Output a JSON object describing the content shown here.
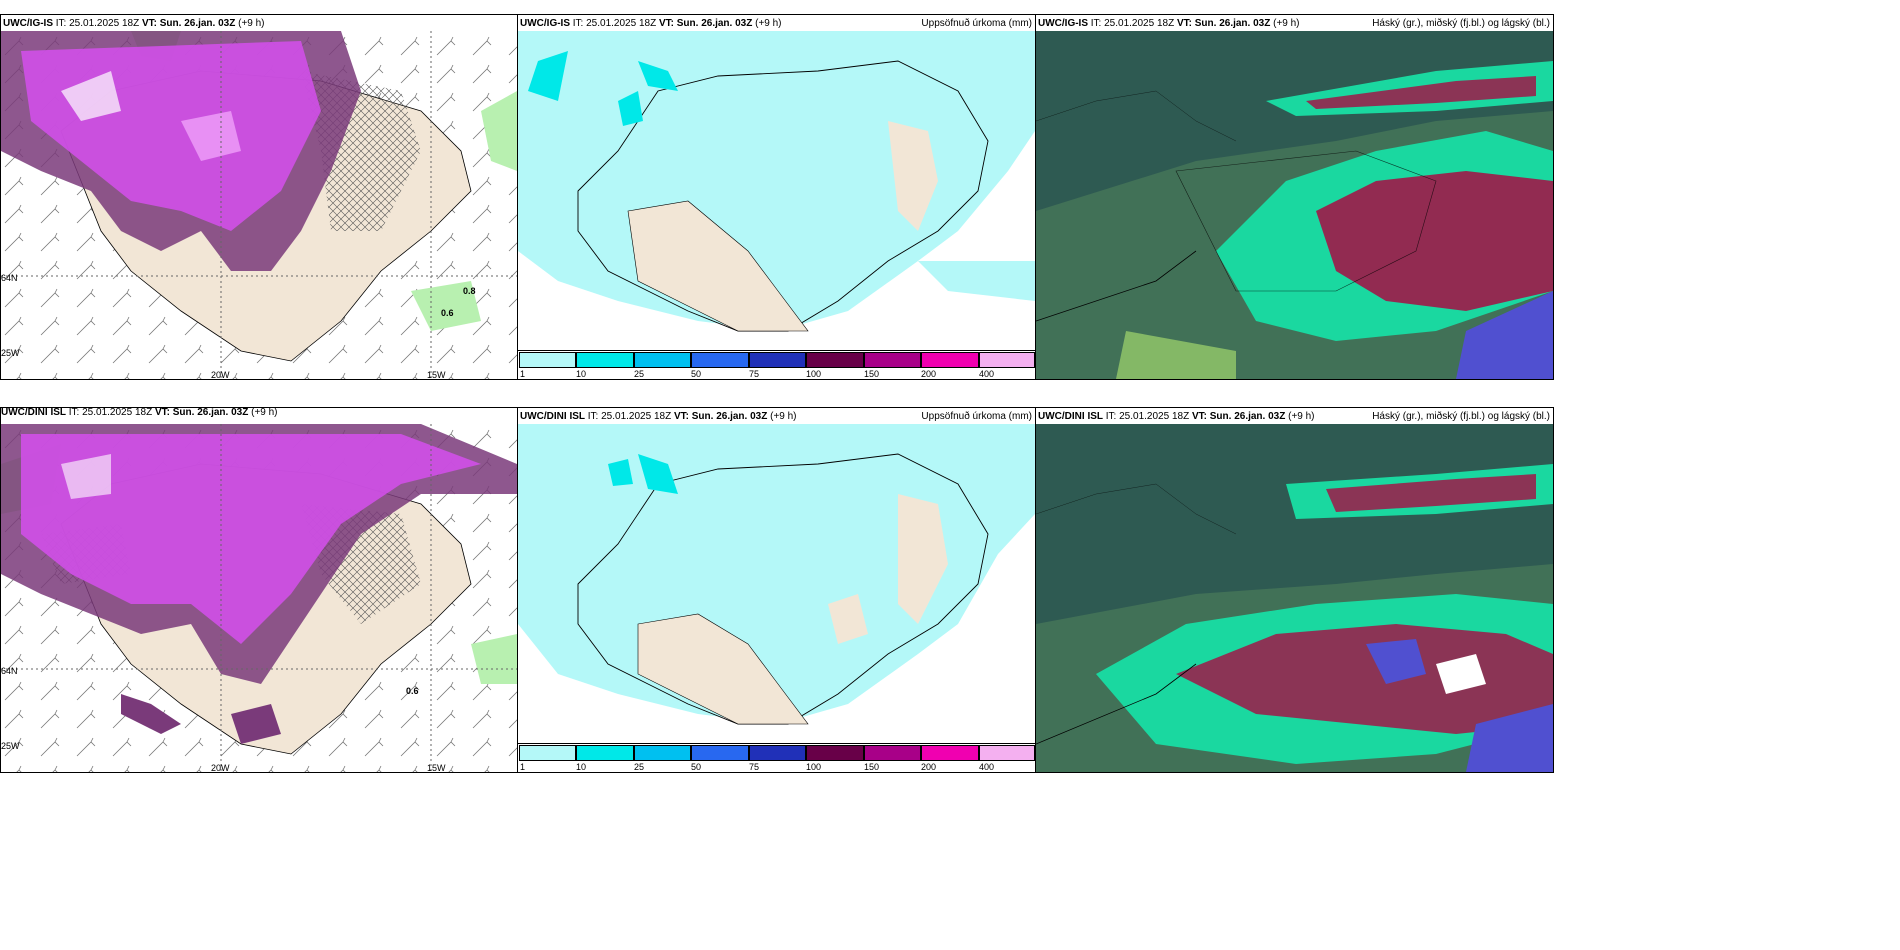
{
  "rows": [
    {
      "model": "UWC/IG-IS",
      "it_label": "IT: 25.01.2025 18Z",
      "vt_label": "VT: Sun. 26.jan. 03Z",
      "offset": "(+9 h)",
      "left_panel": {
        "labels": [
          "0.8",
          "0.6"
        ],
        "lon_labels": [
          "20W",
          "15W"
        ],
        "lat_labels": [
          "64N",
          "25W"
        ]
      },
      "mid_panel": {
        "right_title": "Uppsöfnuð úrkoma (mm)"
      },
      "right_panel": {
        "right_title": "Háský (gr.), miðský (fj.bl.) og lágský (bl.)"
      }
    },
    {
      "model": "UWC/DINI ISL",
      "it_label": "IT: 25.01.2025 18Z",
      "vt_label": "VT: Sun. 26.jan. 03Z",
      "offset": "(+9 h)",
      "left_panel": {
        "labels": [
          "0.6"
        ],
        "lon_labels": [
          "20W",
          "15W"
        ],
        "lat_labels": [
          "64N",
          "25W"
        ]
      },
      "mid_panel": {
        "right_title": "Uppsöfnuð úrkoma (mm)"
      },
      "right_panel": {
        "right_title": "Háský (gr.), miðský (fj.bl.) og lágský (bl.)"
      }
    }
  ],
  "legend": {
    "ticks": [
      "1",
      "10",
      "25",
      "50",
      "75",
      "100",
      "150",
      "200",
      "400"
    ],
    "colors": [
      "#b4f8f8",
      "#00e8e8",
      "#00c0f0",
      "#2868f0",
      "#2030b8",
      "#680048",
      "#a80088",
      "#f000b0",
      "#f4b0f0"
    ]
  },
  "colors": {
    "land": "#f2e6d6",
    "precip_light": "#b4f8f8",
    "snow_purple": "#d050e8",
    "snow_dark": "#7a3a7a",
    "cloud_dark": "#2e5a52",
    "cloud_green": "#1ad8a0",
    "cloud_red": "#a01848",
    "cloud_blue": "#5050d0"
  }
}
